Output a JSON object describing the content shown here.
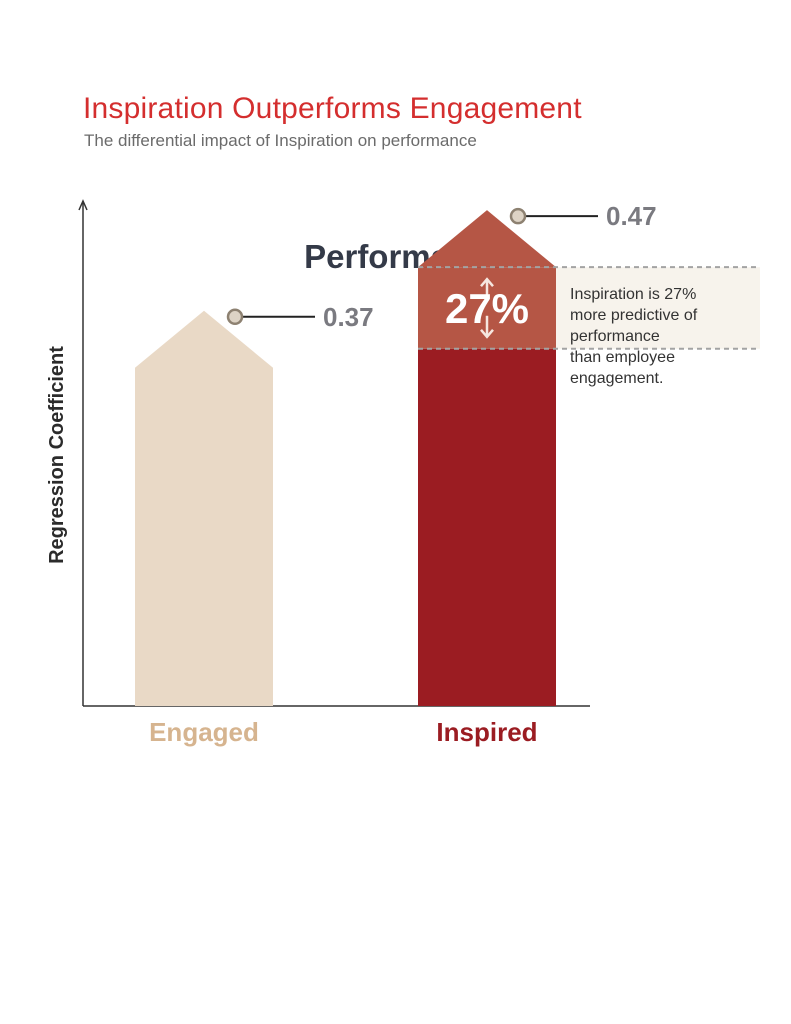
{
  "header": {
    "title": "Inspiration Outperforms Engagement",
    "subtitle": "The differential impact of Inspiration on performance"
  },
  "chart_data": {
    "type": "bar",
    "title": "Performance",
    "ylabel": "Regression Coefficient",
    "xlabel": "",
    "ylim": [
      0,
      0.5
    ],
    "grid": false,
    "categories": [
      "Engaged",
      "Inspired"
    ],
    "values": [
      0.37,
      0.47
    ],
    "value_labels": [
      "0.37",
      "0.47"
    ],
    "colors": [
      "#e9d9c6",
      "#9b1c22"
    ],
    "label_colors": [
      "#d6b48f",
      "#9b1c22"
    ],
    "annotation": {
      "percent_label": "27%",
      "text_lines": [
        "Inspiration is 27%",
        "more predictive of",
        "performance",
        "than employee",
        "engagement."
      ],
      "band_color": "#b55645",
      "box_color": "#f7f3ec"
    }
  }
}
